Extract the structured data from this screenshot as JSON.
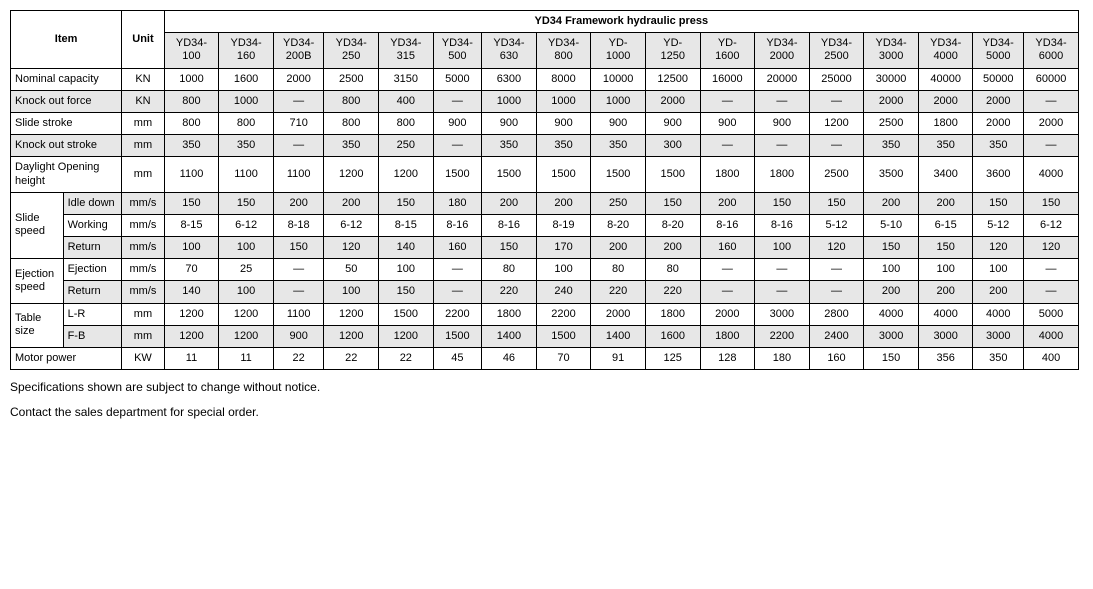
{
  "title": "YD34 Framework hydraulic press",
  "header_item": "Item",
  "header_unit": "Unit",
  "models": [
    {
      "line1": "YD34-",
      "line2": "100"
    },
    {
      "line1": "YD34-",
      "line2": "160"
    },
    {
      "line1": "YD34-",
      "line2": "200B"
    },
    {
      "line1": "YD34-",
      "line2": "250"
    },
    {
      "line1": "YD34-",
      "line2": "315"
    },
    {
      "line1": "YD34-",
      "line2": "500"
    },
    {
      "line1": "YD34-",
      "line2": "630"
    },
    {
      "line1": "YD34-",
      "line2": "800"
    },
    {
      "line1": "YD-",
      "line2": "1000"
    },
    {
      "line1": "YD-",
      "line2": "1250"
    },
    {
      "line1": "YD-",
      "line2": "1600"
    },
    {
      "line1": "YD34-",
      "line2": "2000"
    },
    {
      "line1": "YD34-",
      "line2": "2500"
    },
    {
      "line1": "YD34-",
      "line2": "3000"
    },
    {
      "line1": "YD34-",
      "line2": "4000"
    },
    {
      "line1": "YD34-",
      "line2": "5000"
    },
    {
      "line1": "YD34-",
      "line2": "6000"
    }
  ],
  "rows": {
    "nominal_capacity": {
      "label": "Nominal capacity",
      "unit": "KN",
      "values": [
        "1000",
        "1600",
        "2000",
        "2500",
        "3150",
        "5000",
        "6300",
        "8000",
        "10000",
        "12500",
        "16000",
        "20000",
        "25000",
        "30000",
        "40000",
        "50000",
        "60000"
      ]
    },
    "knock_out_force": {
      "label": "Knock out force",
      "unit": "KN",
      "values": [
        "800",
        "1000",
        "—",
        "800",
        "400",
        "—",
        "1000",
        "1000",
        "1000",
        "2000",
        "—",
        "—",
        "—",
        "2000",
        "2000",
        "2000",
        "—"
      ]
    },
    "slide_stroke": {
      "label": "Slide stroke",
      "unit": "mm",
      "values": [
        "800",
        "800",
        "710",
        "800",
        "800",
        "900",
        "900",
        "900",
        "900",
        "900",
        "900",
        "900",
        "1200",
        "2500",
        "1800",
        "2000",
        "2000"
      ]
    },
    "knock_out_stroke": {
      "label": "Knock out stroke",
      "unit": "mm",
      "values": [
        "350",
        "350",
        "—",
        "350",
        "250",
        "—",
        "350",
        "350",
        "350",
        "300",
        "—",
        "—",
        "—",
        "350",
        "350",
        "350",
        "—"
      ]
    },
    "daylight": {
      "label_line1": "Daylight Opening",
      "label_line2": "height",
      "unit": "mm",
      "values": [
        "1100",
        "1100",
        "1100",
        "1200",
        "1200",
        "1500",
        "1500",
        "1500",
        "1500",
        "1500",
        "1800",
        "1800",
        "2500",
        "3500",
        "3400",
        "3600",
        "4000"
      ]
    },
    "slide_speed": {
      "group_label": "Slide speed",
      "idle_down": {
        "label": "Idle down",
        "unit": "mm/s",
        "values": [
          "150",
          "150",
          "200",
          "200",
          "150",
          "180",
          "200",
          "200",
          "250",
          "150",
          "200",
          "150",
          "150",
          "200",
          "200",
          "150",
          "150"
        ]
      },
      "working": {
        "label": "Working",
        "unit": "mm/s",
        "values": [
          "8-15",
          "6-12",
          "8-18",
          "6-12",
          "8-15",
          "8-16",
          "8-16",
          "8-19",
          "8-20",
          "8-20",
          "8-16",
          "8-16",
          "5-12",
          "5-10",
          "6-15",
          "5-12",
          "6-12"
        ]
      },
      "return": {
        "label": "Return",
        "unit": "mm/s",
        "values": [
          "100",
          "100",
          "150",
          "120",
          "140",
          "160",
          "150",
          "170",
          "200",
          "200",
          "160",
          "100",
          "120",
          "150",
          "150",
          "120",
          "120"
        ]
      }
    },
    "ejection_speed": {
      "group_label": "Ejection speed",
      "ejection": {
        "label": "Ejection",
        "unit": "mm/s",
        "values": [
          "70",
          "25",
          "—",
          "50",
          "100",
          "—",
          "80",
          "100",
          "80",
          "80",
          "—",
          "—",
          "—",
          "100",
          "100",
          "100",
          "—"
        ]
      },
      "return": {
        "label": "Return",
        "unit": "mm/s",
        "values": [
          "140",
          "100",
          "—",
          "100",
          "150",
          "—",
          "220",
          "240",
          "220",
          "220",
          "—",
          "—",
          "—",
          "200",
          "200",
          "200",
          "—"
        ]
      }
    },
    "table_size": {
      "group_label": "Table size",
      "lr": {
        "label": "L-R",
        "unit": "mm",
        "values": [
          "1200",
          "1200",
          "1100",
          "1200",
          "1500",
          "2200",
          "1800",
          "2200",
          "2000",
          "1800",
          "2000",
          "3000",
          "2800",
          "4000",
          "4000",
          "4000",
          "5000"
        ]
      },
      "fb": {
        "label": "F-B",
        "unit": "mm",
        "values": [
          "1200",
          "1200",
          "900",
          "1200",
          "1200",
          "1500",
          "1400",
          "1500",
          "1400",
          "1600",
          "1800",
          "2200",
          "2400",
          "3000",
          "3000",
          "3000",
          "4000"
        ]
      }
    },
    "motor_power": {
      "label": "Motor power",
      "unit": "KW",
      "values": [
        "11",
        "11",
        "22",
        "22",
        "22",
        "45",
        "46",
        "70",
        "91",
        "125",
        "128",
        "180",
        "160",
        "150",
        "356",
        "350",
        "400"
      ]
    }
  },
  "footnotes": [
    "Specifications shown are subject to change without notice.",
    "Contact the sales department for special order."
  ]
}
